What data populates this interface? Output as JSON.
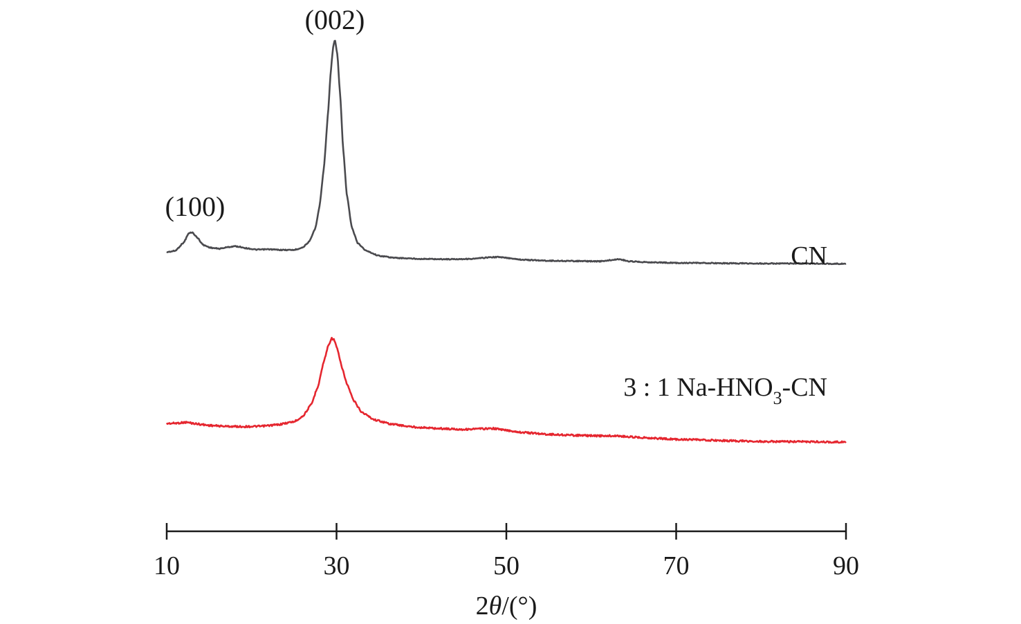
{
  "chart_data": {
    "type": "line",
    "title": "",
    "xlabel_prefix": "2",
    "xlabel_theta": "θ",
    "xlabel_suffix": "/(°)",
    "ylabel": "",
    "xlim": [
      10,
      90
    ],
    "xticks": [
      10,
      30,
      50,
      70,
      90
    ],
    "xtick_labels": [
      "10",
      "30",
      "50",
      "70",
      "90"
    ],
    "grid": false,
    "y_axis_shown": false,
    "peak_annotations": [
      {
        "label": "(100)",
        "x": 13,
        "series": "CN"
      },
      {
        "label": "(002)",
        "x": 29.8,
        "series": "CN"
      }
    ],
    "series": [
      {
        "name": "CN",
        "label": "CN",
        "color": "#4a4a4e",
        "x": [
          10,
          11,
          12,
          12.6,
          13,
          13.6,
          14.3,
          15.2,
          16.2,
          17.2,
          18,
          18.6,
          19.5,
          20.5,
          22,
          23.5,
          25,
          26,
          26.8,
          27.5,
          28,
          28.5,
          29,
          29.3,
          29.6,
          29.8,
          30.1,
          30.4,
          30.8,
          31.2,
          31.8,
          32.5,
          33.5,
          35,
          37,
          40,
          43,
          46,
          48,
          49,
          50.5,
          52,
          55,
          58,
          61,
          63.3,
          64.5,
          67,
          70,
          75,
          80,
          85,
          90
        ],
        "y": [
          9.1,
          9.5,
          12.2,
          15.2,
          15.5,
          13.8,
          11.4,
          10.5,
          10.2,
          10.7,
          11.0,
          10.8,
          10.3,
          9.9,
          10.0,
          9.8,
          9.8,
          10.6,
          12.5,
          16.8,
          24.0,
          36.0,
          54.0,
          67.0,
          75.5,
          78.0,
          73.0,
          61.0,
          42.0,
          28.0,
          17.0,
          12.0,
          9.5,
          7.9,
          7.2,
          6.9,
          6.8,
          6.9,
          7.4,
          7.5,
          7.1,
          6.6,
          6.3,
          6.2,
          6.1,
          6.8,
          6.1,
          5.8,
          5.6,
          5.5,
          5.4,
          5.4,
          5.3
        ]
      },
      {
        "name": "3 : 1 Na-HNO3-CN",
        "label_main": "3 : 1 Na-HNO",
        "label_sub": "3",
        "label_tail": "-CN",
        "color": "#e5262f",
        "x": [
          10,
          11,
          12.3,
          13.5,
          15,
          17,
          19,
          21,
          23,
          25,
          26,
          27,
          27.8,
          28.5,
          29,
          29.4,
          29.7,
          30.1,
          30.6,
          31.2,
          32,
          33,
          34.5,
          36.5,
          39,
          42,
          45,
          47,
          48.5,
          50,
          52,
          55,
          58,
          61,
          63,
          65,
          70,
          75,
          80,
          85,
          90
        ],
        "y": [
          6.0,
          6.1,
          6.4,
          5.9,
          5.4,
          5.1,
          5.0,
          5.1,
          5.6,
          6.6,
          8.3,
          12.0,
          18.0,
          26.0,
          31.0,
          33.6,
          33.2,
          30.0,
          24.5,
          19.0,
          13.5,
          9.6,
          7.2,
          5.8,
          4.9,
          4.4,
          4.1,
          4.3,
          4.4,
          3.8,
          3.1,
          2.5,
          2.2,
          2.0,
          2.0,
          1.6,
          0.9,
          0.5,
          0.2,
          0.1,
          0.0
        ]
      }
    ]
  }
}
